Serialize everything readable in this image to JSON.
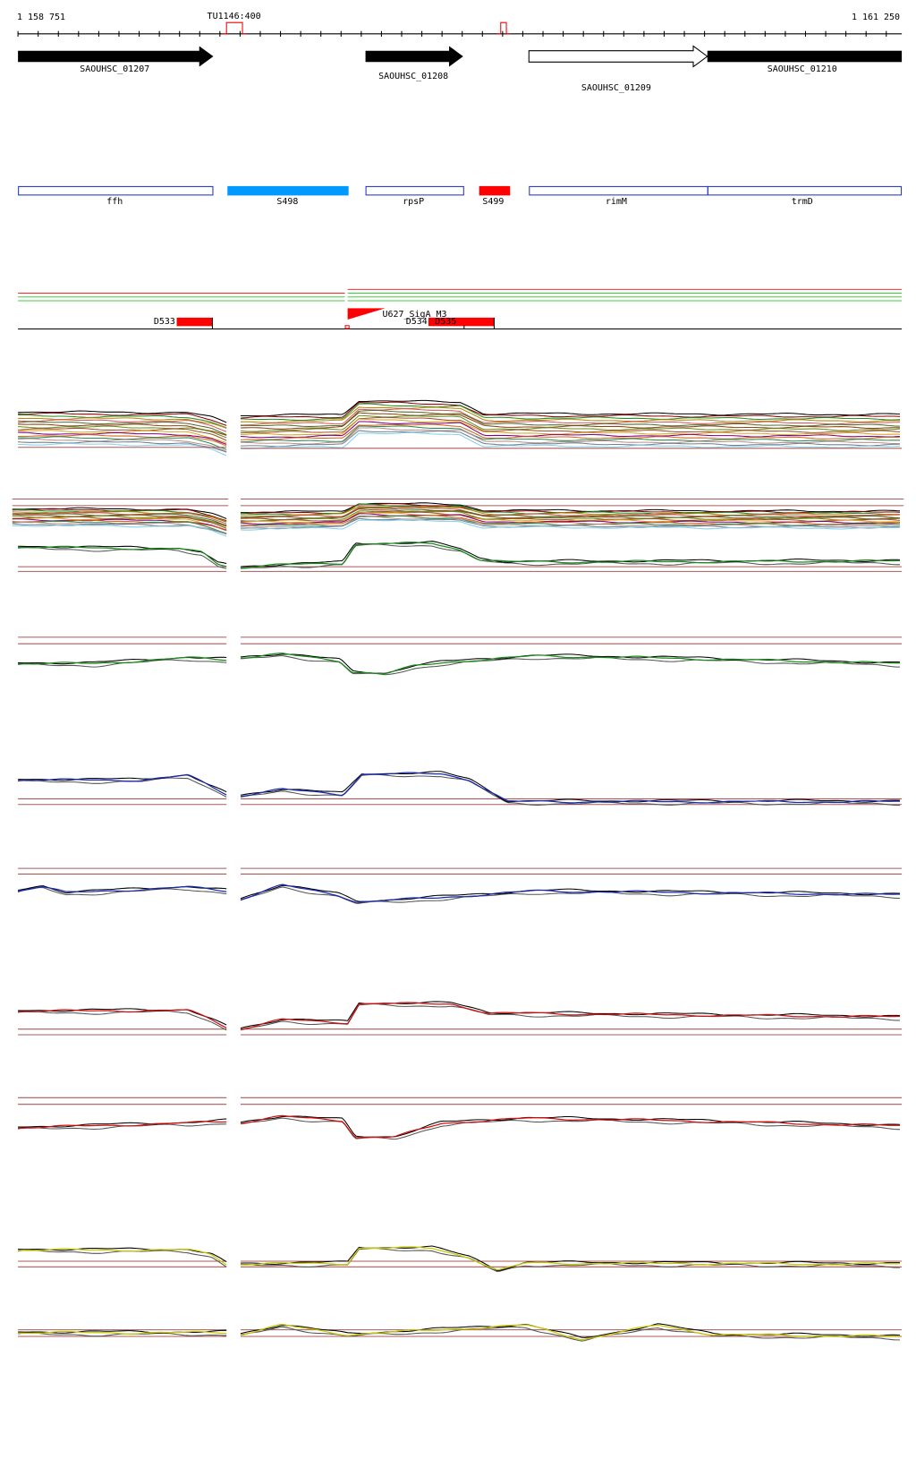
{
  "ruler": {
    "start": "1 158 751",
    "end": "1 161 250",
    "marker": "TU1146:400"
  },
  "genes": [
    {
      "label": "SAOUHSC_01207"
    },
    {
      "label": "SAOUHSC_01208"
    },
    {
      "label": "SAOUHSC_01209"
    },
    {
      "label": "SAOUHSC_01210"
    }
  ],
  "features": [
    {
      "label": "ffh"
    },
    {
      "label": "S498"
    },
    {
      "label": "rpsP"
    },
    {
      "label": "S499"
    },
    {
      "label": "rimM"
    },
    {
      "label": "trmD"
    }
  ],
  "sites": [
    {
      "label": "D533"
    },
    {
      "label": "U627_SigA_M3"
    },
    {
      "label": "D534"
    },
    {
      "label": "D535"
    }
  ]
}
